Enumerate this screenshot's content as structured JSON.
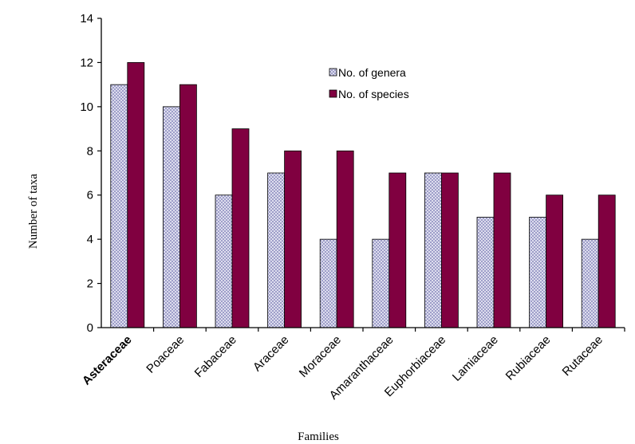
{
  "chart_data": {
    "type": "bar",
    "title": "",
    "xlabel": "Families",
    "ylabel": "Number of taxa",
    "categories": [
      "Asteraceae",
      "Poaceae",
      "Fabaceae",
      "Araceae",
      "Moraceae",
      "Amaranthaceae",
      "Euphorbiaceae",
      "Lamiaceae",
      "Rubiaceae",
      "Rutaceae"
    ],
    "series": [
      {
        "name": "No. of genera",
        "values": [
          11,
          10,
          6,
          7,
          4,
          4,
          7,
          5,
          5,
          4
        ],
        "color": "#d8d8ee",
        "pattern": "crosshatch"
      },
      {
        "name": "No. of species",
        "values": [
          12,
          11,
          9,
          8,
          8,
          7,
          7,
          7,
          6,
          6
        ],
        "color": "#800040"
      }
    ],
    "ylim": [
      0,
      14
    ],
    "yticks": [
      "0",
      "2",
      "4",
      "6",
      "8",
      "10",
      "12",
      "14"
    ],
    "grid": false,
    "legend": "top-right"
  }
}
